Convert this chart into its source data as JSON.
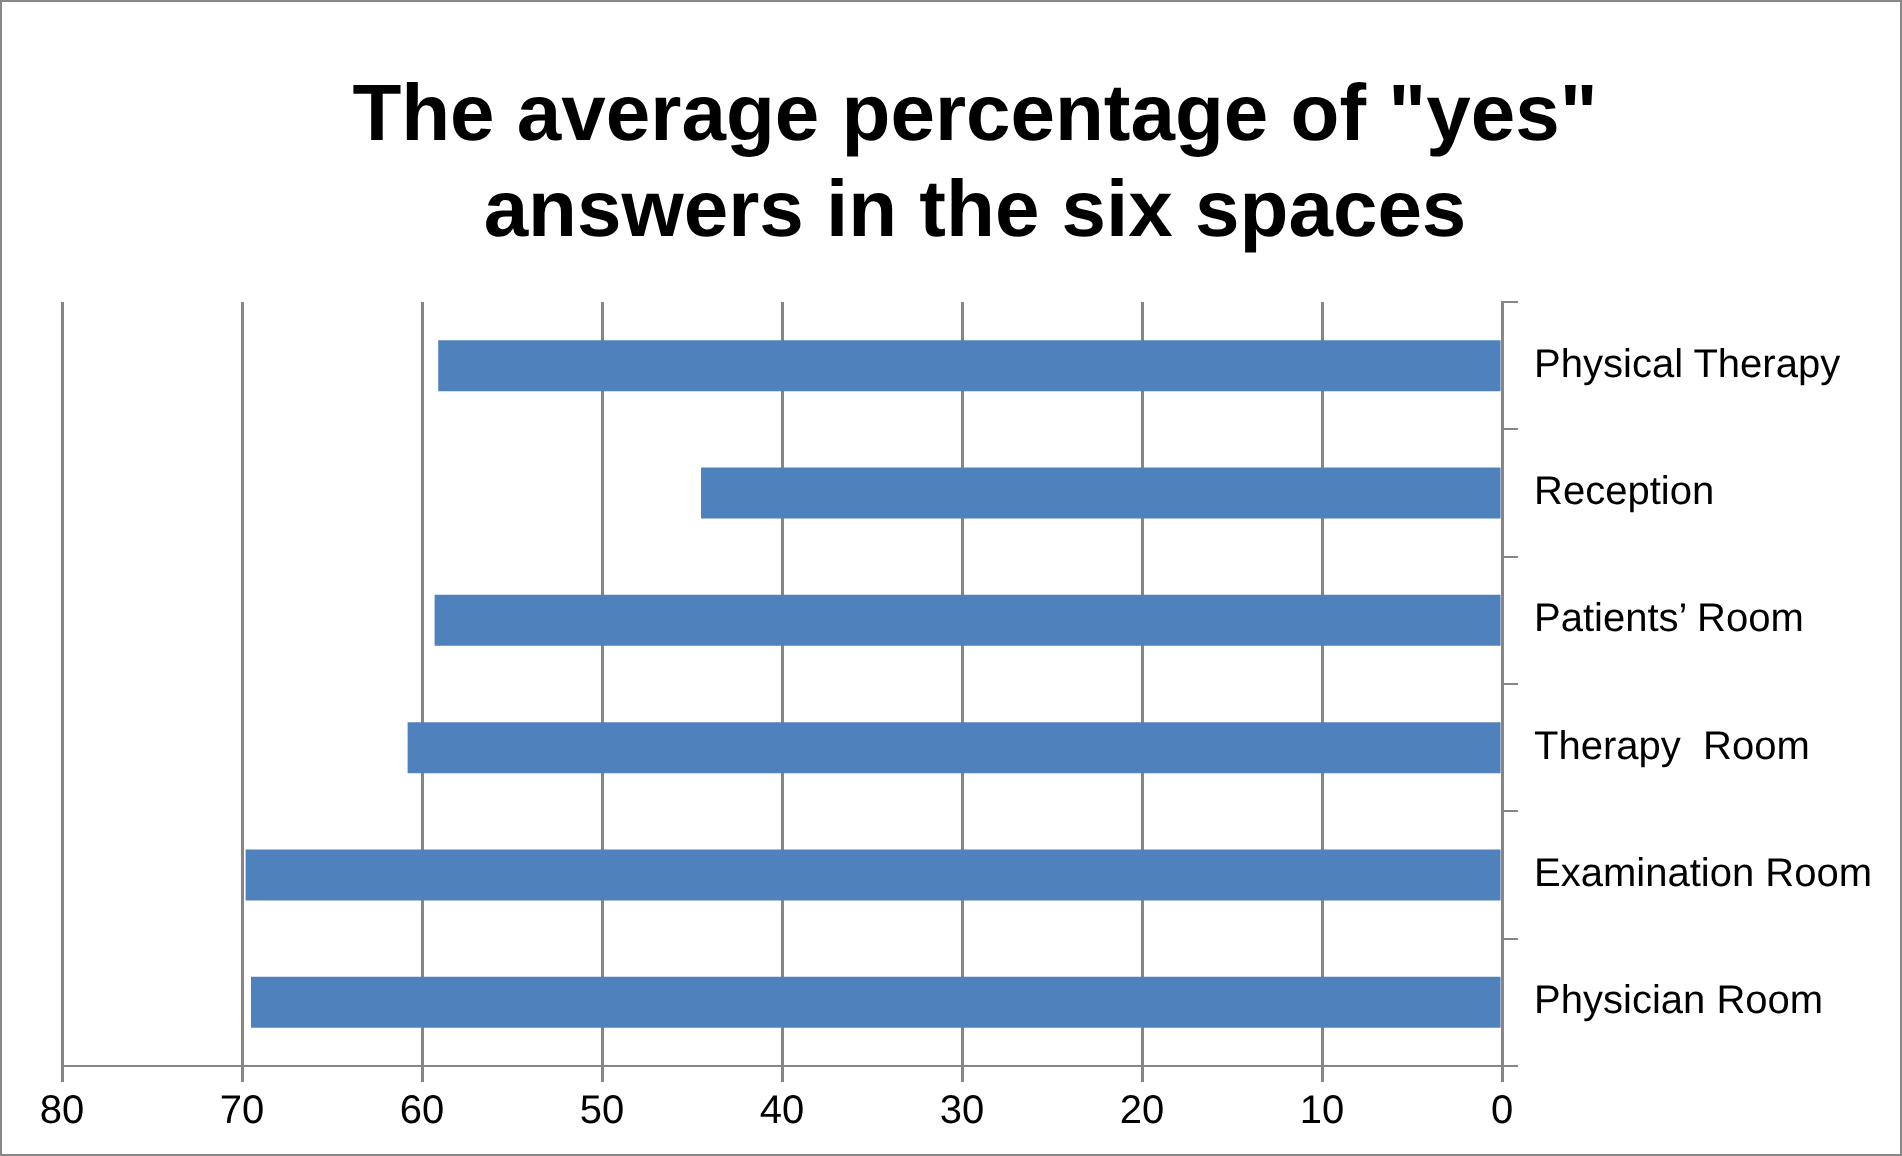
{
  "chart_data": {
    "type": "bar",
    "orientation": "horizontal",
    "title": "The average percentage of \"yes\" answers in the six spaces",
    "categories": [
      "Physical Therapy",
      "Reception",
      "Patients’ Room",
      "Therapy  Room",
      "Examination Room",
      "Physician Room"
    ],
    "values": [
      59.1,
      44.5,
      59.3,
      60.8,
      69.8,
      69.5
    ],
    "color": "#4f81bd",
    "xlim": [
      80,
      0
    ],
    "xticks": [
      80,
      70,
      60,
      50,
      40,
      30,
      20,
      10,
      0
    ],
    "grid": "x",
    "legend": false
  }
}
